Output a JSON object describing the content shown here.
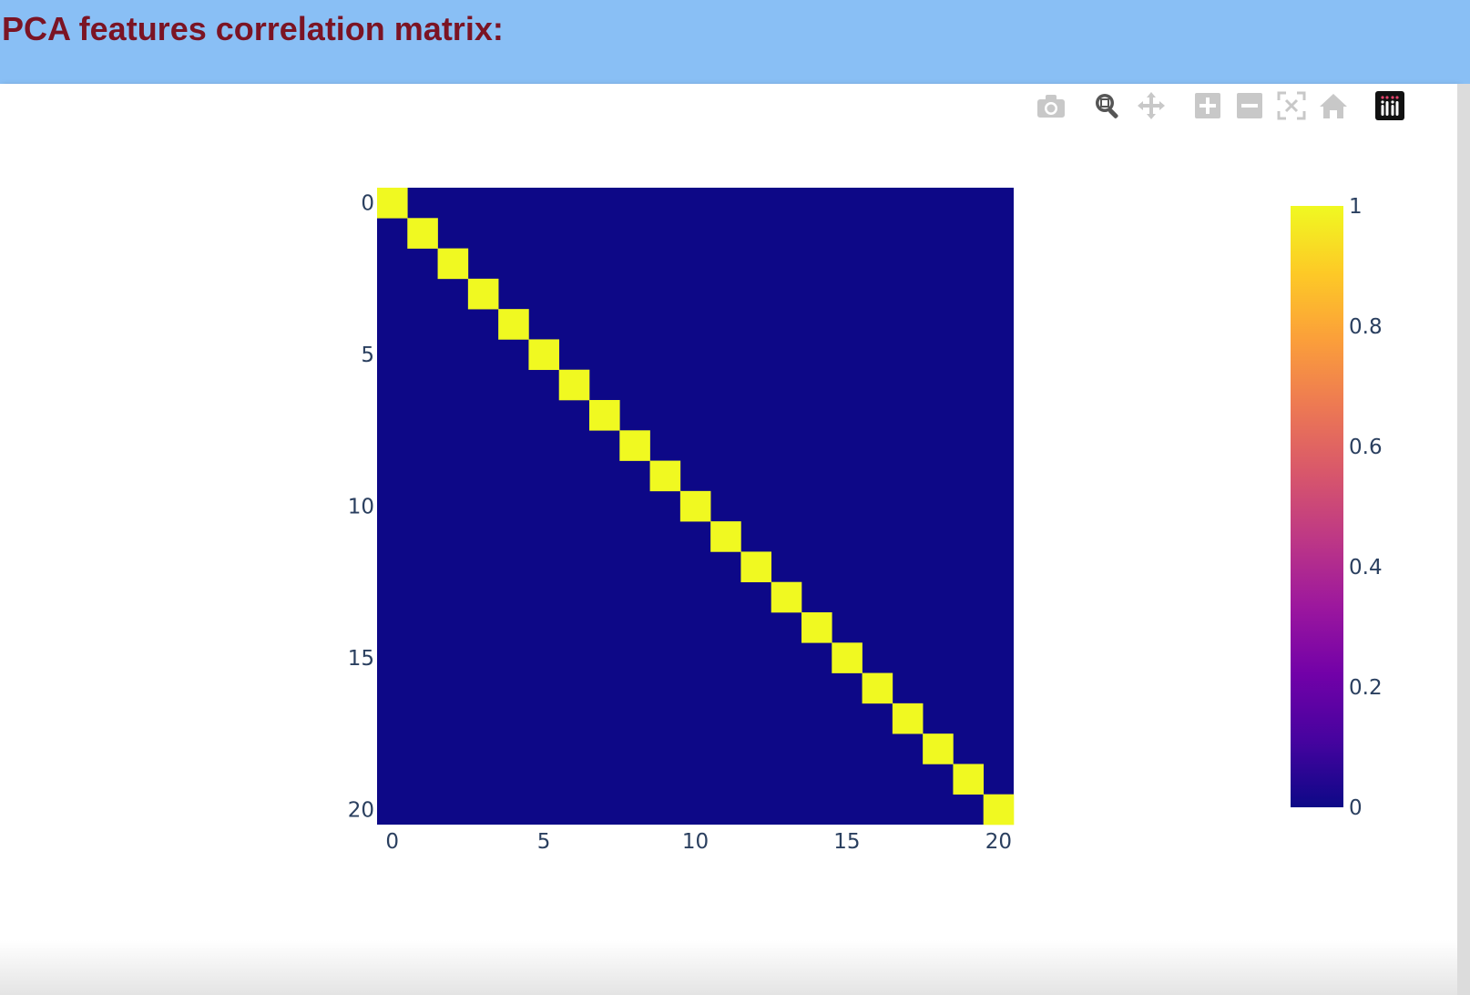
{
  "page": {
    "title": "PCA features correlation matrix:"
  },
  "toolbar": {
    "buttons": [
      {
        "icon": "camera-icon",
        "name": "download-plot-button"
      },
      {
        "icon": "zoom-icon",
        "name": "zoom-button",
        "active": true
      },
      {
        "icon": "pan-icon",
        "name": "pan-button"
      },
      {
        "icon": "zoom-in-icon",
        "name": "zoom-in-button"
      },
      {
        "icon": "zoom-out-icon",
        "name": "zoom-out-button"
      },
      {
        "icon": "autoscale-icon",
        "name": "autoscale-button"
      },
      {
        "icon": "home-icon",
        "name": "reset-axes-button"
      },
      {
        "icon": "plotly-logo-icon",
        "name": "plotly-logo-button"
      }
    ]
  },
  "chart_data": {
    "type": "heatmap",
    "title": "",
    "xlabel": "",
    "ylabel": "",
    "size": 21,
    "x": [
      0,
      1,
      2,
      3,
      4,
      5,
      6,
      7,
      8,
      9,
      10,
      11,
      12,
      13,
      14,
      15,
      16,
      17,
      18,
      19,
      20
    ],
    "y": [
      0,
      1,
      2,
      3,
      4,
      5,
      6,
      7,
      8,
      9,
      10,
      11,
      12,
      13,
      14,
      15,
      16,
      17,
      18,
      19,
      20
    ],
    "z_rule": "identity: value 1 on the diagonal, 0 elsewhere",
    "z_min": 0,
    "z_max": 1,
    "x_ticks": [
      "0",
      "5",
      "10",
      "15",
      "20"
    ],
    "y_ticks": [
      "0",
      "5",
      "10",
      "15",
      "20"
    ],
    "y_reversed": true,
    "colorscale": "plasma",
    "colorbar": {
      "ticks": [
        "0",
        "0.2",
        "0.4",
        "0.6",
        "0.8",
        "1"
      ],
      "tick_values": [
        0,
        0.2,
        0.4,
        0.6,
        0.8,
        1
      ]
    },
    "colors": {
      "low": "#0d0887",
      "high": "#f0f921"
    },
    "grid": false,
    "legend": "colorbar-right"
  }
}
